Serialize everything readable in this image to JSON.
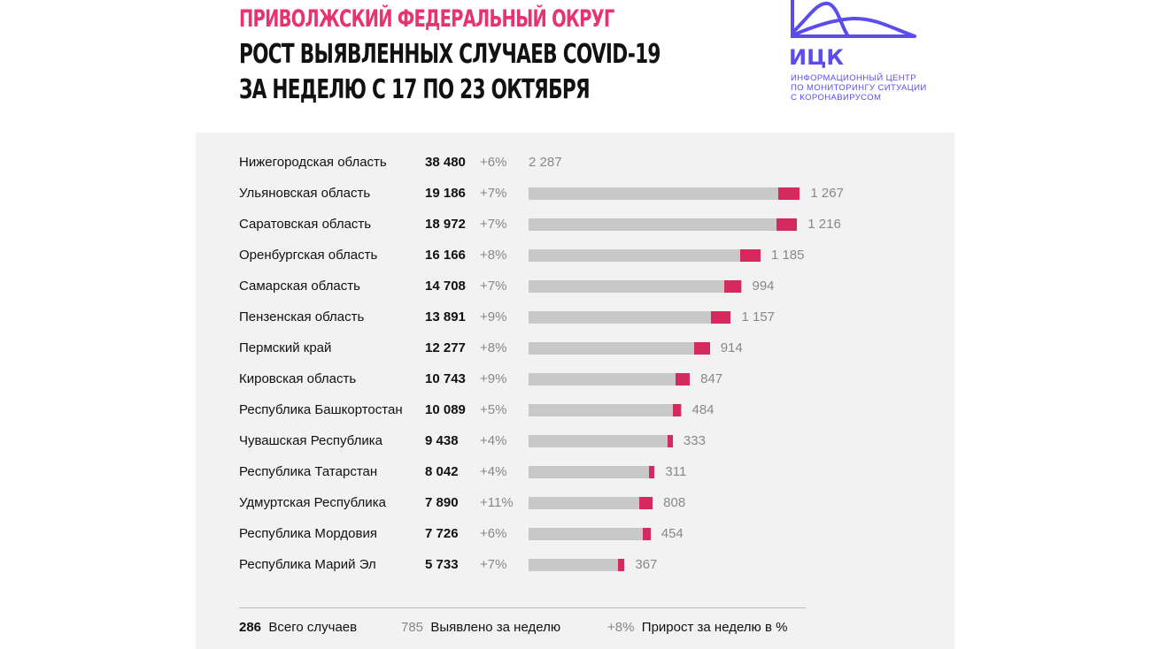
{
  "header": {
    "title_line1": "ПРИВОЛЖСКИЙ ФЕДЕРАЛЬНЫЙ ОКРУГ",
    "title_line2": "РОСТ ВЫЯВЛЕННЫХ СЛУЧАЕВ COVID-19",
    "title_line3": "ЗА НЕДЕЛЮ С 17 ПО 23 ОКТЯБРЯ"
  },
  "logo": {
    "text": "ИЦК",
    "sub1": "ИНФОРМАЦИОННЫЙ ЦЕНТР",
    "sub2": "ПО МОНИТОРИНГУ СИТУАЦИИ",
    "sub3": "С КОРОНАВИРУСОМ"
  },
  "colors": {
    "title_accent": "#e8336f",
    "new_cases_bar": "#d42a5e",
    "total_bar": "#c8c8c8",
    "logo": "#5b4cf0",
    "panel": "#f2f2f2"
  },
  "chart_data": {
    "type": "bar",
    "orientation": "horizontal",
    "rows": [
      {
        "region": "Нижегородская область",
        "total": 38480,
        "total_label": "38 480",
        "growth": "+6%",
        "weekly": 2287,
        "weekly_label": "2 287",
        "bar_shown": false
      },
      {
        "region": "Ульяновская область",
        "total": 19186,
        "total_label": "19 186",
        "growth": "+7%",
        "weekly": 1267,
        "weekly_label": "1 267",
        "bar_shown": true
      },
      {
        "region": "Саратовская область",
        "total": 18972,
        "total_label": "18 972",
        "growth": "+7%",
        "weekly": 1216,
        "weekly_label": "1 216",
        "bar_shown": true
      },
      {
        "region": "Оренбургская область",
        "total": 16166,
        "total_label": "16 166",
        "growth": "+8%",
        "weekly": 1185,
        "weekly_label": "1 185",
        "bar_shown": true
      },
      {
        "region": "Самарская область",
        "total": 14708,
        "total_label": "14 708",
        "growth": "+7%",
        "weekly": 994,
        "weekly_label": "994",
        "bar_shown": true
      },
      {
        "region": "Пензенская область",
        "total": 13891,
        "total_label": "13 891",
        "growth": "+9%",
        "weekly": 1157,
        "weekly_label": "1 157",
        "bar_shown": true
      },
      {
        "region": "Пермский край",
        "total": 12277,
        "total_label": "12 277",
        "growth": "+8%",
        "weekly": 914,
        "weekly_label": "914",
        "bar_shown": true
      },
      {
        "region": "Кировская область",
        "total": 10743,
        "total_label": "10 743",
        "growth": "+9%",
        "weekly": 847,
        "weekly_label": "847",
        "bar_shown": true
      },
      {
        "region": "Республика Башкортостан",
        "total": 10089,
        "total_label": "10 089",
        "growth": "+5%",
        "weekly": 484,
        "weekly_label": "484",
        "bar_shown": true
      },
      {
        "region": "Чувашская Республика",
        "total": 9438,
        "total_label": "9 438",
        "growth": "+4%",
        "weekly": 333,
        "weekly_label": "333",
        "bar_shown": true
      },
      {
        "region": "Республика Татарстан",
        "total": 8042,
        "total_label": "8 042",
        "growth": "+4%",
        "weekly": 311,
        "weekly_label": "311",
        "bar_shown": true
      },
      {
        "region": "Удмуртская Республика",
        "total": 7890,
        "total_label": "7 890",
        "growth": "+11%",
        "weekly": 808,
        "weekly_label": "808",
        "bar_shown": true
      },
      {
        "region": "Республика Мордовия",
        "total": 7726,
        "total_label": "7 726",
        "growth": "+6%",
        "weekly": 454,
        "weekly_label": "454",
        "bar_shown": true
      },
      {
        "region": "Республика Марий Эл",
        "total": 5733,
        "total_label": "5 733",
        "growth": "+7%",
        "weekly": 367,
        "weekly_label": "367",
        "bar_shown": true
      }
    ]
  },
  "legend": {
    "total_sample": "286",
    "total_label": "Всего случаев",
    "weekly_sample": "785",
    "weekly_label": "Выявлено за неделю",
    "growth_sample": "+8%",
    "growth_label": "Прирост за неделю в %"
  }
}
